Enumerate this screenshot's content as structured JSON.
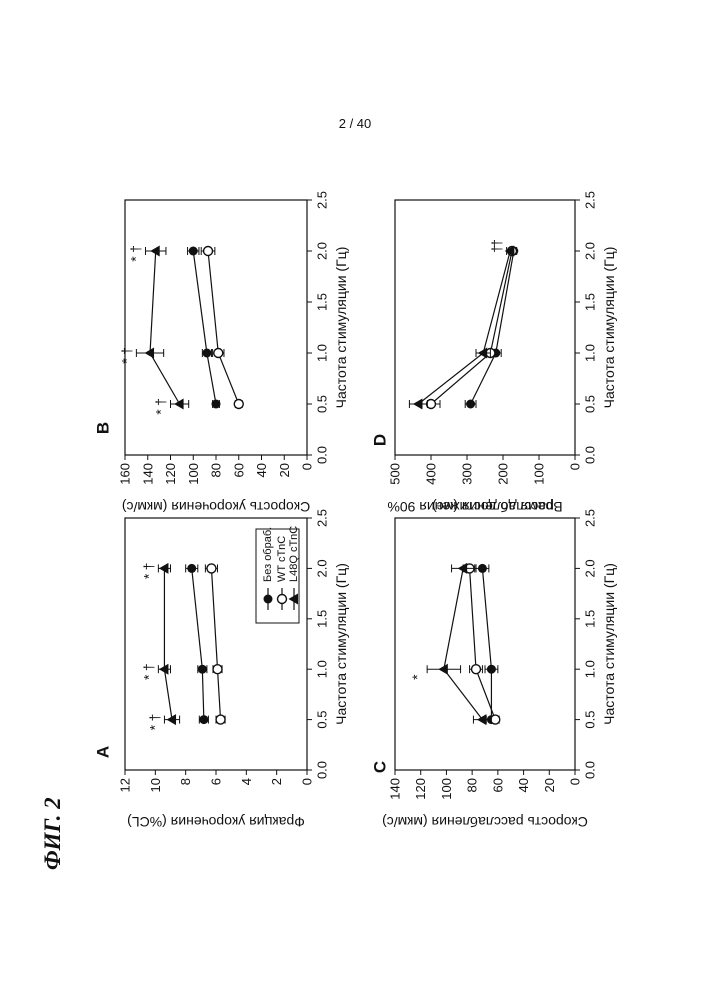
{
  "page_number": "2 / 40",
  "figure_label": "ФИГ. 2",
  "colors": {
    "ink": "#111111",
    "paper": "#ffffff"
  },
  "legend": {
    "entries": [
      {
        "label": "Без обраб.",
        "marker": "filled-circle"
      },
      {
        "label": "WT cTnC",
        "marker": "open-circle"
      },
      {
        "label": "L48Q cTnC",
        "marker": "filled-triangle"
      }
    ]
  },
  "chart_data": [
    {
      "id": "A",
      "panel_label": "A",
      "type": "line",
      "xlabel": "Частота стимуляции (Гц)",
      "ylabel": "Фракция укорочения (%CL)",
      "xlim": [
        0.0,
        2.5
      ],
      "xticks": [
        "0.0",
        "0.5",
        "1.0",
        "1.5",
        "2.0",
        "2.5"
      ],
      "ylim": [
        0,
        12
      ],
      "yticks": [
        "0",
        "2",
        "4",
        "6",
        "8",
        "10",
        "12"
      ],
      "x": [
        0.5,
        1.0,
        2.0
      ],
      "series": [
        {
          "name": "Без обраб.",
          "marker": "filled-circle",
          "values": [
            6.8,
            6.9,
            7.6
          ],
          "errors": [
            0.3,
            0.3,
            0.4
          ]
        },
        {
          "name": "WT cTnC",
          "marker": "open-circle",
          "values": [
            5.7,
            5.9,
            6.3
          ],
          "errors": [
            0.3,
            0.3,
            0.4
          ]
        },
        {
          "name": "L48Q cTnC",
          "marker": "filled-triangle",
          "values": [
            8.9,
            9.4,
            9.4
          ],
          "errors": [
            0.5,
            0.4,
            0.4
          ]
        }
      ],
      "annotations": [
        {
          "x": 0.5,
          "text": "*"
        },
        {
          "x": 0.5,
          "text": "†"
        },
        {
          "x": 1.0,
          "text": "*"
        },
        {
          "x": 1.0,
          "text": "†"
        },
        {
          "x": 2.0,
          "text": "*"
        },
        {
          "x": 2.0,
          "text": "†"
        }
      ]
    },
    {
      "id": "B",
      "panel_label": "B",
      "type": "line",
      "xlabel": "Частота стимуляции (Гц)",
      "ylabel": "Скорость укорочения (мкм/с)",
      "xlim": [
        0.0,
        2.5
      ],
      "xticks": [
        "0.0",
        "0.5",
        "1.0",
        "1.5",
        "2.0",
        "2.5"
      ],
      "ylim": [
        0,
        160
      ],
      "yticks": [
        "0",
        "20",
        "40",
        "60",
        "80",
        "100",
        "120",
        "140",
        "160"
      ],
      "x": [
        0.5,
        1.0,
        2.0
      ],
      "series": [
        {
          "name": "Без обраб.",
          "marker": "filled-circle",
          "values": [
            80,
            88,
            100
          ],
          "errors": [
            3,
            4,
            5
          ]
        },
        {
          "name": "WT cTnC",
          "marker": "open-circle",
          "values": [
            60,
            78,
            87
          ],
          "errors": [
            3,
            5,
            6
          ]
        },
        {
          "name": "L48Q cTnC",
          "marker": "filled-triangle",
          "values": [
            112,
            138,
            133
          ],
          "errors": [
            8,
            12,
            9
          ]
        }
      ],
      "annotations": [
        {
          "x": 0.5,
          "text": "*"
        },
        {
          "x": 0.5,
          "text": "†"
        },
        {
          "x": 1.0,
          "text": "*"
        },
        {
          "x": 1.0,
          "text": "†"
        },
        {
          "x": 2.0,
          "text": "*"
        },
        {
          "x": 2.0,
          "text": "†"
        }
      ]
    },
    {
      "id": "C",
      "panel_label": "C",
      "type": "line",
      "xlabel": "Частота стимуляции (Гц)",
      "ylabel": "Скорость расслабления (мкм/с)",
      "xlim": [
        0.0,
        2.5
      ],
      "xticks": [
        "0.0",
        "0.5",
        "1.0",
        "1.5",
        "2.0",
        "2.5"
      ],
      "ylim": [
        0,
        140
      ],
      "yticks": [
        "0",
        "20",
        "40",
        "60",
        "80",
        "100",
        "120",
        "140"
      ],
      "x": [
        0.5,
        1.0,
        2.0
      ],
      "series": [
        {
          "name": "Без обраб.",
          "marker": "filled-circle",
          "values": [
            65,
            65,
            72
          ],
          "errors": [
            4,
            5,
            5
          ]
        },
        {
          "name": "WT cTnC",
          "marker": "open-circle",
          "values": [
            62,
            77,
            82
          ],
          "errors": [
            3,
            5,
            5
          ]
        },
        {
          "name": "L48Q cTnC",
          "marker": "filled-triangle",
          "values": [
            72,
            102,
            87
          ],
          "errors": [
            7,
            13,
            9
          ]
        }
      ],
      "annotations": [
        {
          "x": 1.0,
          "text": "*"
        }
      ]
    },
    {
      "id": "D",
      "panel_label": "D",
      "type": "line",
      "xlabel": "Частота стимуляции (Гц)",
      "ylabel": "Время до достижения 90% расслабления (мс)",
      "ylabel_lines": [
        "Время до достижения 90%",
        "расслабления (мс)"
      ],
      "xlim": [
        0.0,
        2.5
      ],
      "xticks": [
        "0.0",
        "0.5",
        "1.0",
        "1.5",
        "2.0",
        "2.5"
      ],
      "ylim": [
        0,
        500
      ],
      "yticks": [
        "0",
        "100",
        "200",
        "300",
        "400",
        "500"
      ],
      "x": [
        0.5,
        1.0,
        2.0
      ],
      "series": [
        {
          "name": "Без обраб.",
          "marker": "filled-circle",
          "values": [
            290,
            220,
            170
          ],
          "errors": [
            15,
            15,
            8
          ]
        },
        {
          "name": "WT cTnC",
          "marker": "open-circle",
          "values": [
            400,
            235,
            175
          ],
          "errors": [
            25,
            15,
            8
          ]
        },
        {
          "name": "L48Q cTnC",
          "marker": "filled-triangle",
          "values": [
            435,
            255,
            180
          ],
          "errors": [
            25,
            20,
            10
          ]
        }
      ],
      "annotations": [
        {
          "x": 2.0,
          "text": "†"
        },
        {
          "x": 2.0,
          "text": "†"
        }
      ]
    }
  ]
}
